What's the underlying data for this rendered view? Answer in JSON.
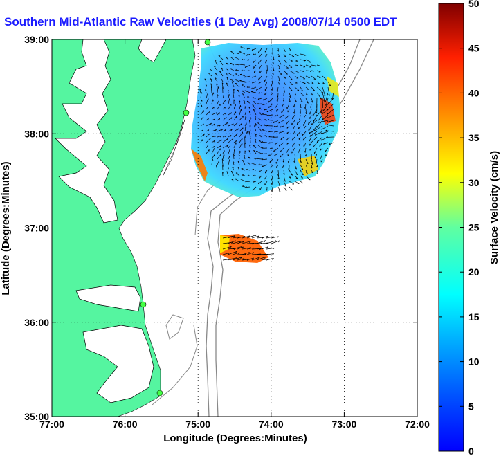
{
  "title": "Southern Mid-Atlantic Raw Velocities (1 Day Avg) 2008/07/14 0500 EDT",
  "map": {
    "xlabel": "Longitude (Degrees:Minutes)",
    "ylabel": "Latitude (Degrees:Minutes)",
    "xticks": [
      "77:00",
      "76:00",
      "75:00",
      "74:00",
      "73:00",
      "72:00"
    ],
    "yticks": [
      "39:00",
      "38:00",
      "37:00",
      "36:00",
      "35:00"
    ],
    "grid": "dotted",
    "land_color": "#55f5a0",
    "water_color": "#ffffff"
  },
  "colorbar": {
    "label": "Surface Velocity (cm/s)",
    "ticks": [
      "0",
      "5",
      "10",
      "15",
      "20",
      "25",
      "30",
      "35",
      "40",
      "45",
      "50"
    ],
    "range": [
      0,
      50
    ],
    "colormap": "jet"
  }
}
